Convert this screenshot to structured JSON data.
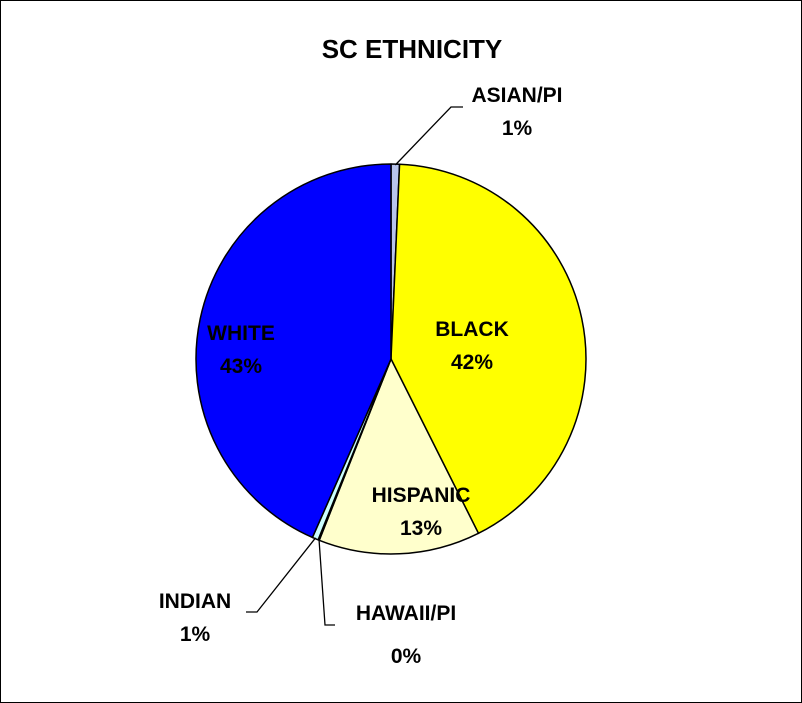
{
  "chart_data": {
    "type": "pie",
    "title": "SC ETHNICITY",
    "slices": [
      {
        "name": "ASIAN/PI",
        "value": 0.7,
        "label": "1%",
        "color": "#b8c4ec"
      },
      {
        "name": "BLACK",
        "value": 41.9,
        "label": "42%",
        "color": "#ffff00"
      },
      {
        "name": "HISPANIC",
        "value": 13.4,
        "label": "13%",
        "color": "#ffffcc"
      },
      {
        "name": "HAWAII/PI",
        "value": 0.1,
        "label": "0%",
        "color": "#9fb8e6"
      },
      {
        "name": "INDIAN",
        "value": 0.5,
        "label": "1%",
        "color": "#ccffff"
      },
      {
        "name": "WHITE",
        "value": 43.4,
        "label": "43%",
        "color": "#0000ff"
      }
    ],
    "start_angle": "12 o'clock",
    "direction": "clockwise",
    "legend": "none"
  }
}
